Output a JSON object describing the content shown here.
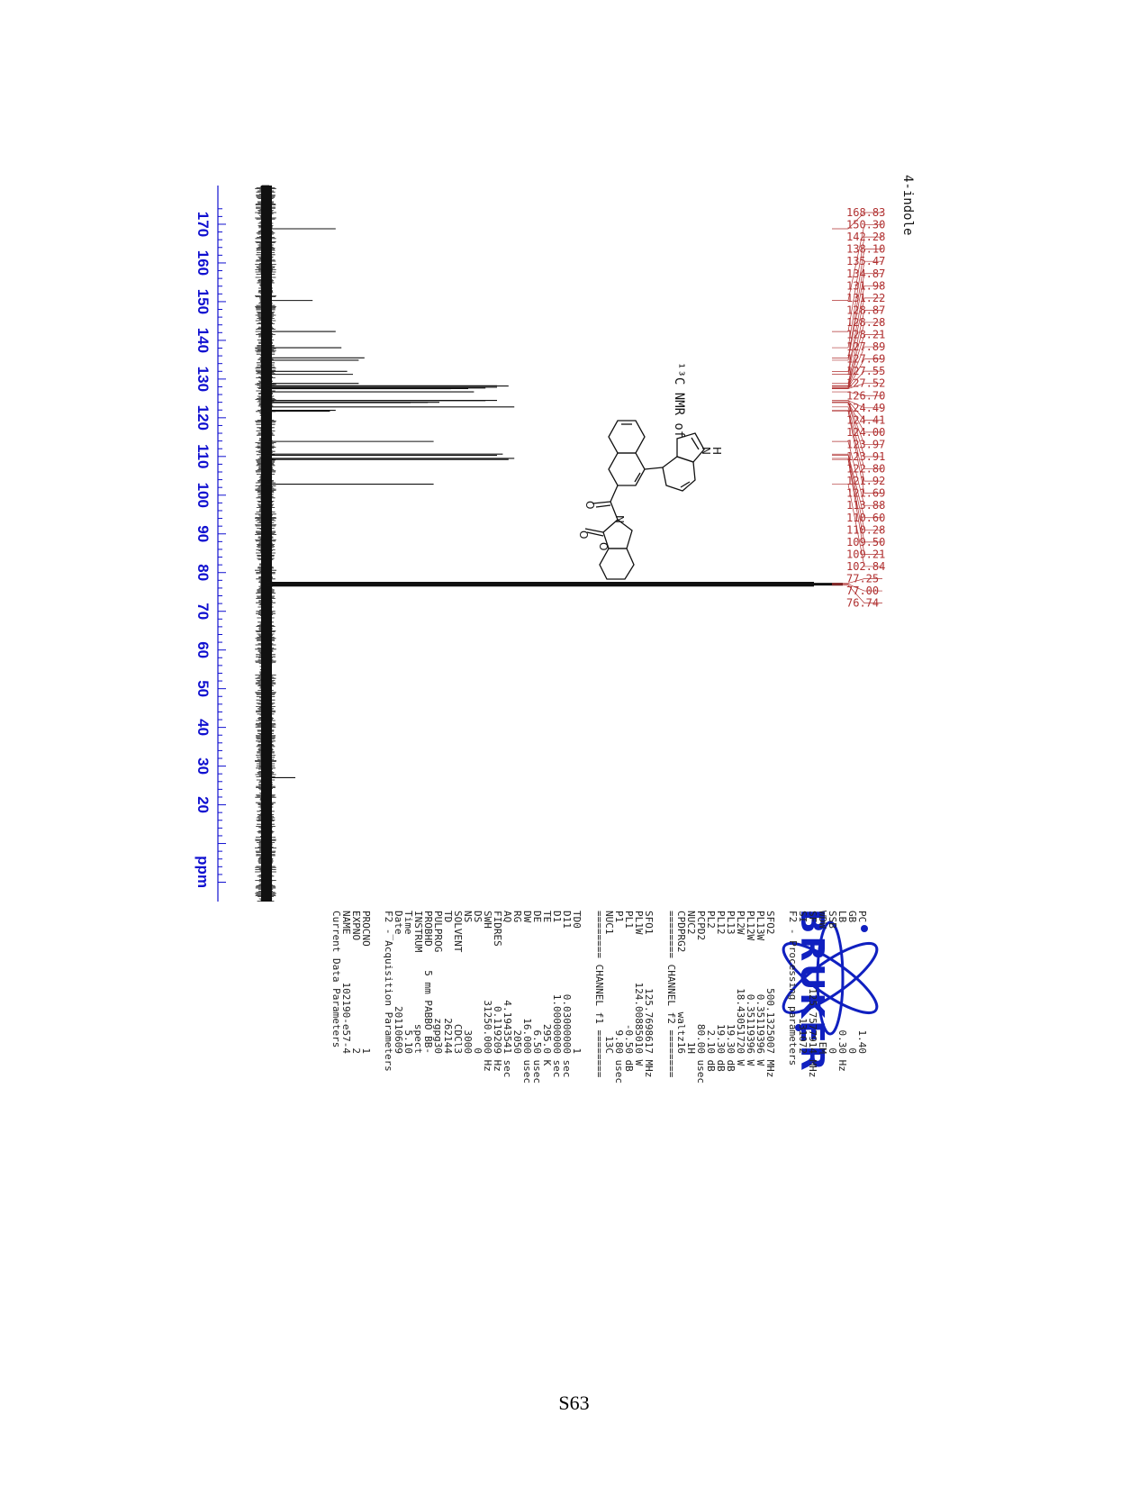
{
  "page": {
    "number": "S63"
  },
  "spectrum": {
    "sample_name": "4-indole",
    "caption": "¹³C NMR of",
    "axis_unit": "ppm",
    "axis_ticks": [
      170,
      160,
      150,
      140,
      130,
      120,
      110,
      100,
      90,
      80,
      70,
      60,
      50,
      40,
      30,
      20
    ],
    "axis_range": [
      -5,
      180
    ],
    "peak_labels": [
      "168.83",
      "150.30",
      "142.28",
      "138.10",
      "135.47",
      "134.87",
      "131.98",
      "131.22",
      "128.87",
      "128.28",
      "128.21",
      "127.89",
      "127.69",
      "127.55",
      "127.52",
      "126.70",
      "124.49",
      "124.41",
      "124.00",
      "123.97",
      "123.91",
      "122.80",
      "121.92",
      "121.69",
      "113.88",
      "110.60",
      "110.28",
      "109.50",
      "109.21",
      "102.84",
      "77.25",
      "77.00",
      "76.74"
    ],
    "peaks": [
      {
        "ppm": 168.83,
        "h": 0.12
      },
      {
        "ppm": 150.3,
        "h": 0.08
      },
      {
        "ppm": 142.28,
        "h": 0.12
      },
      {
        "ppm": 138.1,
        "h": 0.13
      },
      {
        "ppm": 135.47,
        "h": 0.17
      },
      {
        "ppm": 134.87,
        "h": 0.16
      },
      {
        "ppm": 131.98,
        "h": 0.14
      },
      {
        "ppm": 131.22,
        "h": 0.15
      },
      {
        "ppm": 128.87,
        "h": 0.16
      },
      {
        "ppm": 128.28,
        "h": 0.4
      },
      {
        "ppm": 128.21,
        "h": 0.42
      },
      {
        "ppm": 127.89,
        "h": 0.4
      },
      {
        "ppm": 127.69,
        "h": 0.38
      },
      {
        "ppm": 127.55,
        "h": 0.35
      },
      {
        "ppm": 127.52,
        "h": 0.32
      },
      {
        "ppm": 126.7,
        "h": 0.36
      },
      {
        "ppm": 124.49,
        "h": 0.4
      },
      {
        "ppm": 124.41,
        "h": 0.38
      },
      {
        "ppm": 124.0,
        "h": 0.3
      },
      {
        "ppm": 123.97,
        "h": 0.28
      },
      {
        "ppm": 123.91,
        "h": 0.25
      },
      {
        "ppm": 122.8,
        "h": 0.43
      },
      {
        "ppm": 121.92,
        "h": 0.12
      },
      {
        "ppm": 121.69,
        "h": 0.11
      },
      {
        "ppm": 113.88,
        "h": 0.29
      },
      {
        "ppm": 110.6,
        "h": 0.41
      },
      {
        "ppm": 110.28,
        "h": 0.4
      },
      {
        "ppm": 109.5,
        "h": 0.43
      },
      {
        "ppm": 109.21,
        "h": 0.42
      },
      {
        "ppm": 102.84,
        "h": 0.29
      },
      {
        "ppm": 77.25,
        "h": 0.95
      },
      {
        "ppm": 77.0,
        "h": 1.0
      },
      {
        "ppm": 76.74,
        "h": 0.95
      },
      {
        "ppm": 27.0,
        "h": 0.05
      }
    ],
    "molecule_atoms": [
      "N",
      "H",
      "O",
      "O",
      "N",
      "O"
    ]
  },
  "brand": {
    "logo_text": "BRUKER"
  },
  "parameters": {
    "current": {
      "heading": "Current Data Parameters",
      "rows": [
        [
          "NAME",
          "102190-e57-4",
          ""
        ],
        [
          "EXPNO",
          "2",
          ""
        ],
        [
          "PROCNO",
          "1",
          ""
        ]
      ]
    },
    "acquisition": {
      "heading": "F2 - Acquisition Parameters",
      "rows": [
        [
          "Date_",
          "20110609",
          ""
        ],
        [
          "Time",
          "5.10",
          ""
        ],
        [
          "INSTRUM",
          "spect",
          ""
        ],
        [
          "PROBHD",
          "5 mm PABBO BB-",
          ""
        ],
        [
          "PULPROG",
          "zgpg30",
          ""
        ],
        [
          "TD",
          "262144",
          ""
        ],
        [
          "SOLVENT",
          "CDCl3",
          ""
        ],
        [
          "NS",
          "3000",
          ""
        ],
        [
          "DS",
          "0",
          ""
        ],
        [
          "SWH",
          "31250.000",
          "Hz"
        ],
        [
          "FIDRES",
          "0.119209",
          "Hz"
        ],
        [
          "AQ",
          "4.1943541",
          "sec"
        ],
        [
          "RG",
          "2050",
          ""
        ],
        [
          "DW",
          "16.000",
          "usec"
        ],
        [
          "DE",
          "6.50",
          "usec"
        ],
        [
          "TE",
          "295.0",
          "K"
        ],
        [
          "D1",
          "1.00000000",
          "sec"
        ],
        [
          "D11",
          "0.03000000",
          "sec"
        ],
        [
          "TD0",
          "1",
          ""
        ]
      ]
    },
    "channel_f1": {
      "heading": "======== CHANNEL f1 ========",
      "rows": [
        [
          "NUC1",
          "13C",
          ""
        ],
        [
          "P1",
          "9.80",
          "usec"
        ],
        [
          "PL1",
          "-0.50",
          "dB"
        ],
        [
          "PL1W",
          "124.00885010",
          "W"
        ],
        [
          "SFO1",
          "125.7698617",
          "MHz"
        ]
      ]
    },
    "channel_f2": {
      "heading": "======== CHANNEL f2 ========",
      "rows": [
        [
          "CPDPRG2",
          "waltz16",
          ""
        ],
        [
          "NUC2",
          "1H",
          ""
        ],
        [
          "PCPD2",
          "80.00",
          "usec"
        ],
        [
          "PL2",
          "2.10",
          "dB"
        ],
        [
          "PL12",
          "19.30",
          "dB"
        ],
        [
          "PL13",
          "19.30",
          "dB"
        ],
        [
          "PL2W",
          "18.43051720",
          "W"
        ],
        [
          "PL12W",
          "0.35119396",
          "W"
        ],
        [
          "PL13W",
          "0.35119396",
          "W"
        ],
        [
          "SFO2",
          "500.1325007",
          "MHz"
        ]
      ]
    },
    "processing": {
      "heading": "F2 - Processing parameters",
      "rows": [
        [
          "SI",
          "131072",
          ""
        ],
        [
          "SF",
          "125.7577914",
          "MHz"
        ],
        [
          "WDW",
          "EM",
          ""
        ],
        [
          "SSB",
          "0",
          ""
        ],
        [
          "LB",
          "0.30",
          "Hz"
        ],
        [
          "GB",
          "0",
          ""
        ],
        [
          "PC",
          "1.40",
          ""
        ]
      ]
    }
  }
}
